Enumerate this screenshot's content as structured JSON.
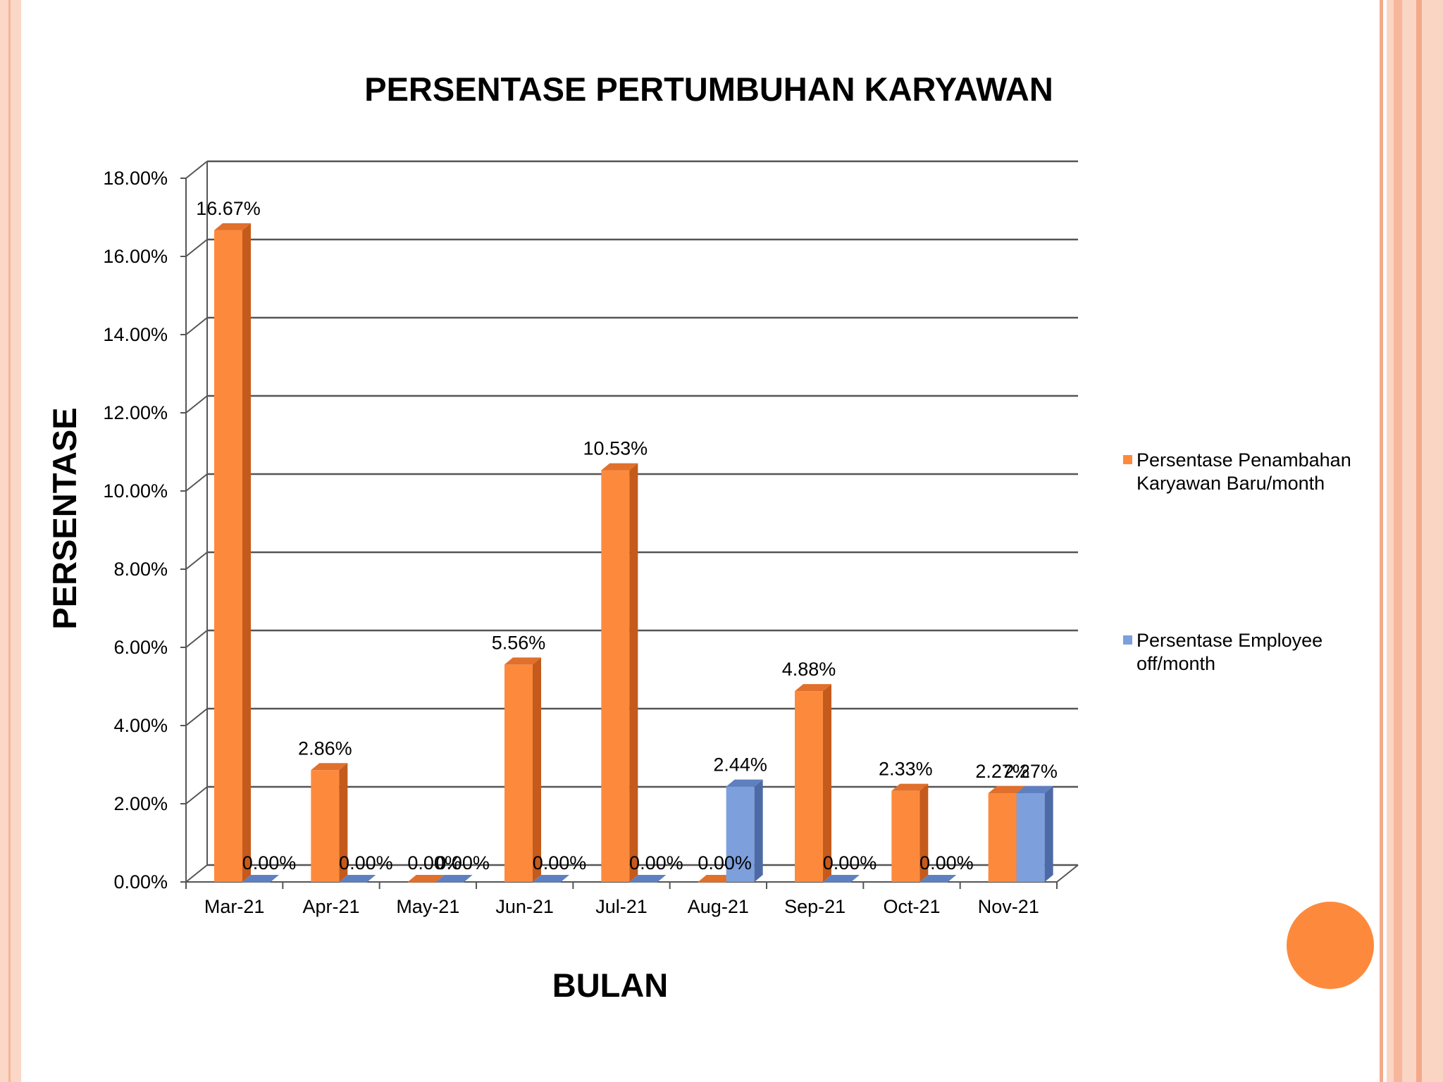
{
  "chart_data": {
    "type": "bar",
    "title": "PERSENTASE PERTUMBUHAN KARYAWAN",
    "xlabel": "BULAN",
    "ylabel": "PERSENTASE",
    "categories": [
      "Mar-21",
      "Apr-21",
      "May-21",
      "Jun-21",
      "Jul-21",
      "Aug-21",
      "Sep-21",
      "Oct-21",
      "Nov-21"
    ],
    "series": [
      {
        "name": "Persentase Penambahan Karyawan Baru/month",
        "values": [
          16.67,
          2.86,
          0.0,
          5.56,
          10.53,
          0.0,
          4.88,
          2.33,
          2.27
        ],
        "labels": [
          "16.67%",
          "2.86%",
          "0.00%",
          "5.56%",
          "10.53%",
          "0.00%",
          "4.88%",
          "2.33%",
          "2.27%"
        ],
        "color": "#fd8a3c",
        "side_color": "#c45a1c",
        "top_color": "#e0702c"
      },
      {
        "name": "Persentase Employee off/month",
        "values": [
          0.0,
          0.0,
          0.0,
          0.0,
          0.0,
          2.44,
          0.0,
          0.0,
          2.27
        ],
        "labels": [
          "0.00%",
          "0.00%",
          "0.00%",
          "0.00%",
          "0.00%",
          "2.44%",
          "0.00%",
          "0.00%",
          "2.27%"
        ],
        "color": "#7d9fdc",
        "side_color": "#4e6aa6",
        "top_color": "#5f80c0"
      }
    ],
    "yticks": [
      "0.00%",
      "2.00%",
      "4.00%",
      "6.00%",
      "8.00%",
      "10.00%",
      "12.00%",
      "14.00%",
      "16.00%",
      "18.00%"
    ],
    "ylim": [
      0,
      18
    ],
    "grid": true,
    "legend_position": "right"
  }
}
